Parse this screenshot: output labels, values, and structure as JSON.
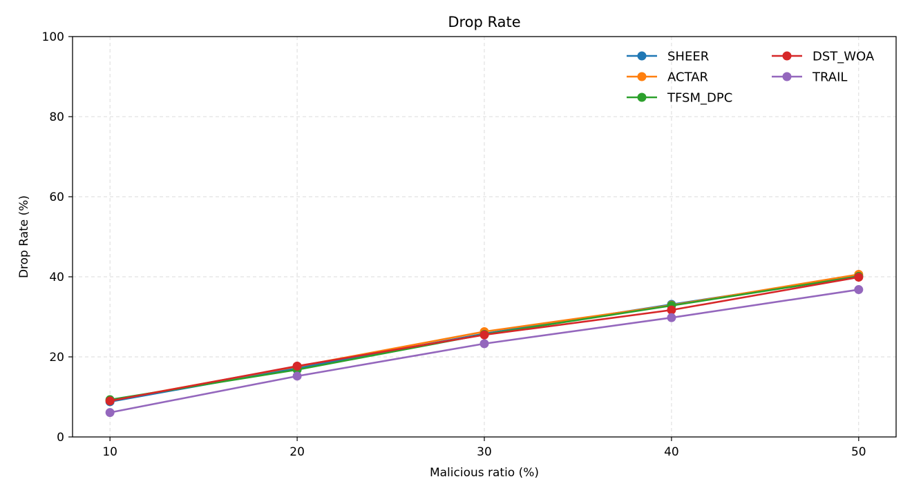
{
  "chart_data": {
    "type": "line",
    "title": "Drop Rate",
    "xlabel": "Malicious ratio (%)",
    "ylabel": "Drop Rate (%)",
    "x": [
      10,
      20,
      30,
      40,
      50
    ],
    "xlim": [
      8,
      52
    ],
    "ylim": [
      0,
      100
    ],
    "xticks": [
      "10",
      "20",
      "30",
      "40",
      "50"
    ],
    "yticks": [
      "0",
      "20",
      "40",
      "60",
      "80",
      "100"
    ],
    "grid": true,
    "legend_position": "top-right",
    "legend_columns": 2,
    "series": [
      {
        "name": "SHEER",
        "color": "#1f77b4",
        "values": [
          8.8,
          17.2,
          25.8,
          33.1,
          40.2
        ]
      },
      {
        "name": "ACTAR",
        "color": "#ff7f0e",
        "values": [
          9.1,
          17.6,
          26.3,
          32.9,
          40.6
        ]
      },
      {
        "name": "TFSM_DPC",
        "color": "#2ca02c",
        "values": [
          9.3,
          16.8,
          25.6,
          32.8,
          40.1
        ]
      },
      {
        "name": "DST_WOA",
        "color": "#d62728",
        "values": [
          9.0,
          17.7,
          25.5,
          31.7,
          39.9
        ]
      },
      {
        "name": "TRAIL",
        "color": "#9467bd",
        "values": [
          6.1,
          15.2,
          23.3,
          29.8,
          36.8
        ]
      }
    ]
  }
}
